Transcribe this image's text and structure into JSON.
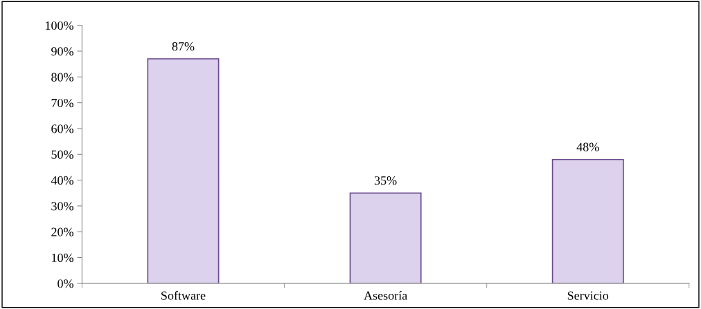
{
  "chart_data": {
    "type": "bar",
    "categories": [
      "Software",
      "Asesoría",
      "Servicio"
    ],
    "values": [
      87,
      35,
      48
    ],
    "value_labels": [
      "87%",
      "35%",
      "48%"
    ],
    "color": "#ddd2ee",
    "ylim": [
      0,
      100
    ],
    "yticks": [
      {
        "value": 0,
        "label": "0%"
      },
      {
        "value": 10,
        "label": "10%"
      },
      {
        "value": 20,
        "label": "20%"
      },
      {
        "value": 30,
        "label": "30%"
      },
      {
        "value": 40,
        "label": "40%"
      },
      {
        "value": 50,
        "label": "50%"
      },
      {
        "value": 60,
        "label": "60%"
      },
      {
        "value": 70,
        "label": "70%"
      },
      {
        "value": 80,
        "label": "80%"
      },
      {
        "value": 90,
        "label": "90%"
      },
      {
        "value": 100,
        "label": "100%"
      }
    ],
    "grid": false,
    "legend": false
  }
}
